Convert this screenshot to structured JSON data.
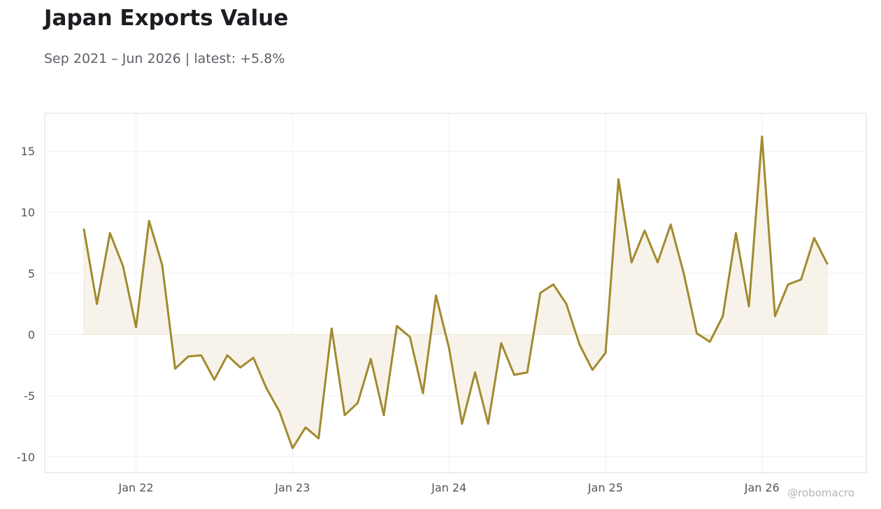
{
  "chart_data": {
    "type": "area",
    "title": "Japan Exports Value",
    "subtitle": "Sep 2021 – Jun 2026 | latest: +5.8%",
    "watermark": "@robomacro",
    "line_color": "#a28a2e",
    "fill_color": "#f7f3ea",
    "grid": true,
    "x_ticks": [
      {
        "date": "2022-01",
        "label": "Jan 22"
      },
      {
        "date": "2023-01",
        "label": "Jan 23"
      },
      {
        "date": "2024-01",
        "label": "Jan 24"
      },
      {
        "date": "2025-01",
        "label": "Jan 25"
      },
      {
        "date": "2026-01",
        "label": "Jan 26"
      }
    ],
    "y_ticks": [
      -10,
      -5,
      0,
      5,
      10,
      15
    ],
    "y_tick_labels": [
      "-10",
      "-5",
      "0",
      "5",
      "10",
      "15"
    ],
    "xlim": [
      "2021-06",
      "2026-09"
    ],
    "ylim": [
      -11.3,
      18.1
    ],
    "x": [
      "2021-09",
      "2021-10",
      "2021-11",
      "2021-12",
      "2022-01",
      "2022-02",
      "2022-03",
      "2022-04",
      "2022-05",
      "2022-06",
      "2022-07",
      "2022-08",
      "2022-09",
      "2022-10",
      "2022-11",
      "2022-12",
      "2023-01",
      "2023-02",
      "2023-03",
      "2023-04",
      "2023-05",
      "2023-06",
      "2023-07",
      "2023-08",
      "2023-09",
      "2023-10",
      "2023-11",
      "2023-12",
      "2024-01",
      "2024-02",
      "2024-03",
      "2024-04",
      "2024-05",
      "2024-06",
      "2024-07",
      "2024-08",
      "2024-09",
      "2024-10",
      "2024-11",
      "2024-12",
      "2025-01",
      "2025-02",
      "2025-03",
      "2025-04",
      "2025-05",
      "2025-06",
      "2025-07",
      "2025-08",
      "2025-09",
      "2025-10",
      "2025-11",
      "2025-12",
      "2026-01",
      "2026-02",
      "2026-03",
      "2026-04",
      "2026-05",
      "2026-06"
    ],
    "values": [
      8.6,
      2.5,
      8.3,
      5.6,
      0.6,
      9.3,
      5.7,
      -2.8,
      -1.8,
      -1.7,
      -3.7,
      -1.7,
      -2.7,
      -1.9,
      -4.4,
      -6.3,
      -9.3,
      -7.6,
      -8.5,
      0.5,
      -6.6,
      -5.6,
      -2.0,
      -6.6,
      0.7,
      -0.2,
      -4.8,
      3.2,
      -1.1,
      -7.3,
      -3.1,
      -7.3,
      -0.7,
      -3.3,
      -3.1,
      3.4,
      4.1,
      2.5,
      -0.8,
      -2.9,
      -1.5,
      12.7,
      5.9,
      8.5,
      5.9,
      9.0,
      5.0,
      0.1,
      -0.6,
      1.5,
      8.3,
      2.3,
      16.2,
      1.5,
      4.1,
      4.5,
      7.9,
      5.8
    ]
  }
}
